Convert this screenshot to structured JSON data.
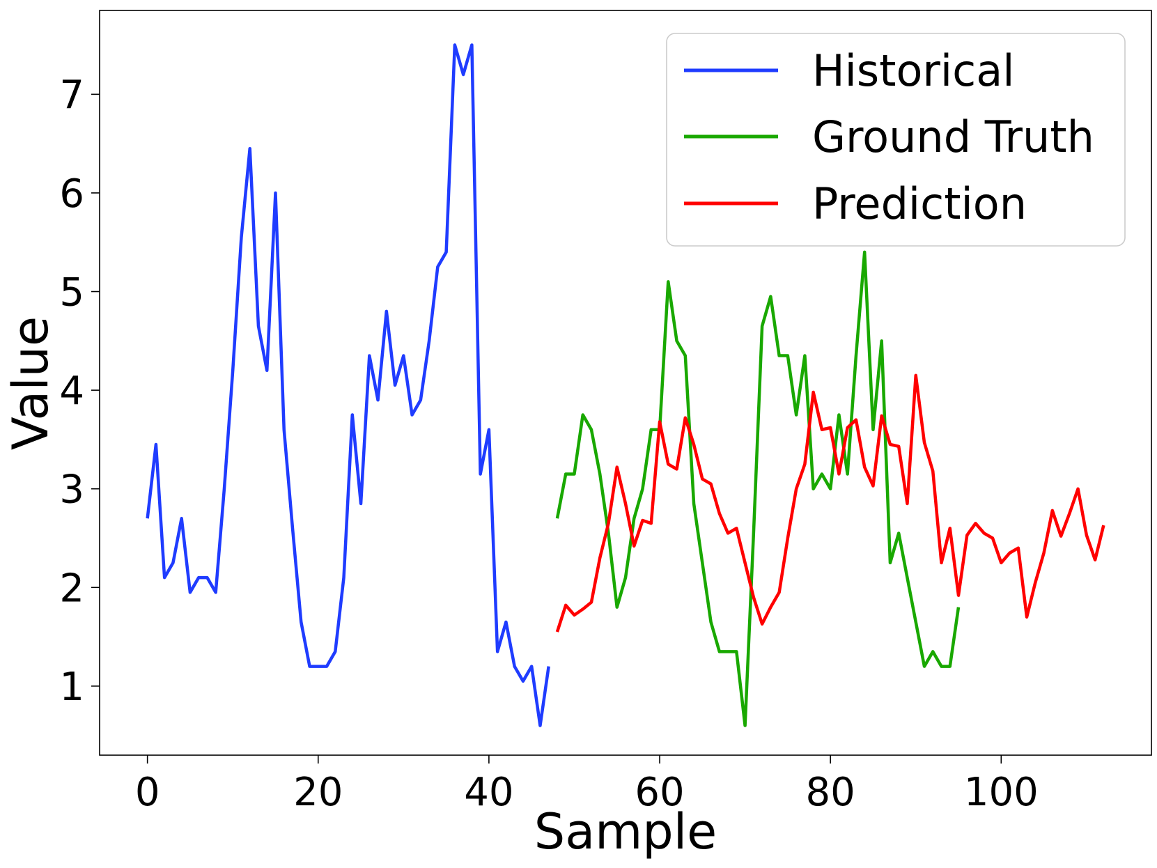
{
  "chart_data": {
    "type": "line",
    "title": "",
    "xlabel": "Sample",
    "ylabel": "Value",
    "xlim": [
      -5.6,
      117.6
    ],
    "ylim": [
      0.3,
      7.85
    ],
    "xticks": [
      0,
      20,
      40,
      60,
      80,
      100
    ],
    "yticks": [
      1,
      2,
      3,
      4,
      5,
      6,
      7
    ],
    "grid": false,
    "legend": "top-right",
    "series": [
      {
        "name": "Historical",
        "color": "#1f3cff",
        "x": [
          0,
          1,
          2,
          3,
          4,
          5,
          6,
          7,
          8,
          9,
          10,
          11,
          12,
          13,
          14,
          15,
          16,
          17,
          18,
          19,
          20,
          21,
          22,
          23,
          24,
          25,
          26,
          27,
          28,
          29,
          30,
          31,
          32,
          33,
          34,
          35,
          36,
          37,
          38,
          39,
          40,
          41,
          42,
          43,
          44,
          45,
          46,
          47
        ],
        "y": [
          2.7,
          3.45,
          2.1,
          2.25,
          2.7,
          1.95,
          2.1,
          2.1,
          1.95,
          3.0,
          4.2,
          5.55,
          6.45,
          4.65,
          4.2,
          6.0,
          3.6,
          2.6,
          1.65,
          1.2,
          1.2,
          1.2,
          1.35,
          2.1,
          3.75,
          2.85,
          4.35,
          3.9,
          4.8,
          4.05,
          4.35,
          3.75,
          3.9,
          4.5,
          5.25,
          5.4,
          7.5,
          7.2,
          7.5,
          3.15,
          3.6,
          1.35,
          1.65,
          1.2,
          1.05,
          1.2,
          0.6,
          1.2
        ]
      },
      {
        "name": "Ground Truth",
        "color": "#19a800",
        "x": [
          48,
          49,
          50,
          51,
          52,
          53,
          54,
          55,
          56,
          57,
          58,
          59,
          60,
          61,
          62,
          63,
          64,
          65,
          66,
          67,
          68,
          69,
          70,
          71,
          72,
          73,
          74,
          75,
          76,
          77,
          78,
          79,
          80,
          81,
          82,
          83,
          84,
          85,
          86,
          87,
          88,
          89,
          90,
          91,
          92,
          93,
          94,
          95
        ],
        "y": [
          2.7,
          3.15,
          3.15,
          3.75,
          3.6,
          3.15,
          2.55,
          1.8,
          2.1,
          2.7,
          3.0,
          3.6,
          3.6,
          5.1,
          4.5,
          4.35,
          2.85,
          2.25,
          1.65,
          1.35,
          1.35,
          1.35,
          0.6,
          2.55,
          4.65,
          4.95,
          4.35,
          4.35,
          3.75,
          4.35,
          3.0,
          3.15,
          3.0,
          3.75,
          3.15,
          4.35,
          5.4,
          3.6,
          4.5,
          2.25,
          2.55,
          2.1,
          1.65,
          1.2,
          1.35,
          1.2,
          1.2,
          1.8
        ]
      },
      {
        "name": "Prediction",
        "color": "#ff0000",
        "x": [
          48,
          49,
          50,
          51,
          52,
          53,
          54,
          55,
          56,
          57,
          58,
          59,
          60,
          61,
          62,
          63,
          64,
          65,
          66,
          67,
          68,
          69,
          70,
          71,
          72,
          73,
          74,
          75,
          76,
          77,
          78,
          79,
          80,
          81,
          82,
          83,
          84,
          85,
          86,
          87,
          88,
          89,
          90,
          91,
          92,
          93,
          94,
          95,
          96,
          97,
          98,
          99,
          100,
          101,
          102,
          103,
          104,
          105,
          106,
          107,
          108,
          109,
          110,
          111,
          112
        ],
        "y": [
          1.55,
          1.82,
          1.72,
          1.78,
          1.85,
          2.3,
          2.65,
          3.22,
          2.85,
          2.42,
          2.68,
          2.65,
          3.68,
          3.25,
          3.2,
          3.72,
          3.45,
          3.1,
          3.05,
          2.75,
          2.55,
          2.6,
          2.25,
          1.9,
          1.63,
          1.8,
          1.95,
          2.5,
          3.0,
          3.25,
          3.98,
          3.6,
          3.62,
          3.15,
          3.62,
          3.7,
          3.22,
          3.03,
          3.74,
          3.45,
          3.43,
          2.85,
          4.15,
          3.47,
          3.18,
          2.25,
          2.6,
          1.92,
          2.53,
          2.65,
          2.55,
          2.5,
          2.25,
          2.35,
          2.4,
          1.7,
          2.05,
          2.35,
          2.78,
          2.52,
          2.75,
          3.0,
          2.53,
          2.28,
          2.63
        ]
      }
    ]
  }
}
